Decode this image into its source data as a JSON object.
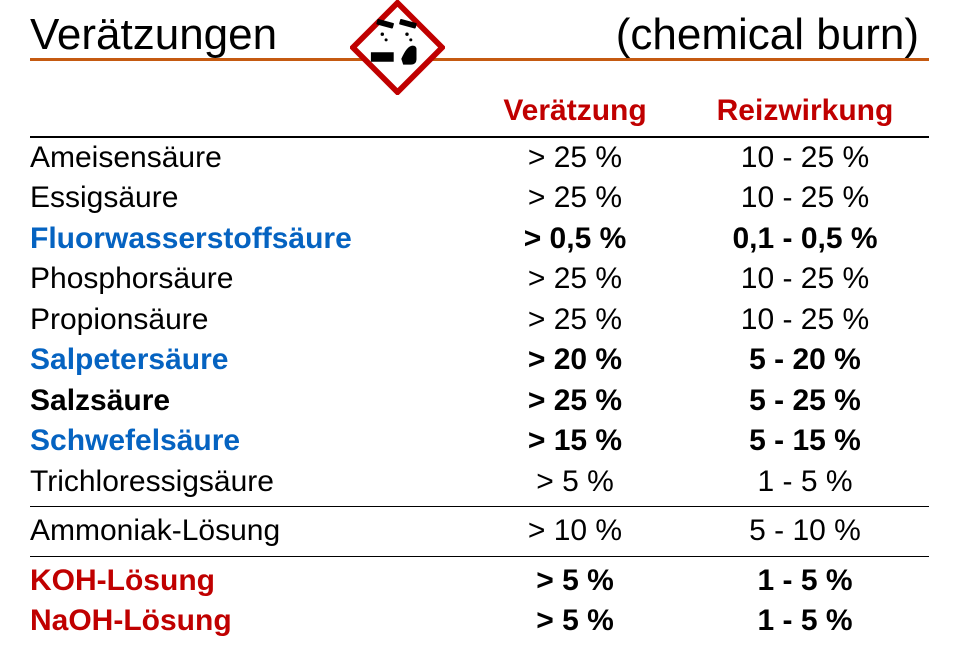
{
  "title_left": "Verätzungen",
  "title_right": "(chemical burn)",
  "header_col2": "Verätzung",
  "header_col3": "Reizwirkung",
  "colors": {
    "underline": "#c55a11",
    "blue": "#0563c1",
    "red": "#c00000",
    "black": "#000000"
  },
  "icon": {
    "border_color": "#c00000",
    "inner_bg": "#ffffff"
  },
  "rows": [
    {
      "name": "Ameisensäure",
      "v": "> 25 %",
      "r": "10 - 25 %",
      "name_color": "#000000"
    },
    {
      "name": "Essigsäure",
      "v": "> 25 %",
      "r": "10 - 25 %",
      "name_color": "#000000"
    },
    {
      "name": "Fluorwasserstoffsäure",
      "v": "> 0,5 %",
      "r": "0,1 - 0,5 %",
      "name_color": "#0563c1",
      "bold": true
    },
    {
      "name": "Phosphorsäure",
      "v": "> 25 %",
      "r": "10 - 25 %",
      "name_color": "#000000"
    },
    {
      "name": "Propionsäure",
      "v": "> 25 %",
      "r": "10 - 25 %",
      "name_color": "#000000"
    },
    {
      "name": "Salpetersäure",
      "v": "> 20 %",
      "r": "5 - 20 %",
      "name_color": "#0563c1",
      "bold": true
    },
    {
      "name": "Salzsäure",
      "v": "> 25 %",
      "r": "5 - 25 %",
      "name_color": "#000000",
      "bold": true
    },
    {
      "name": "Schwefelsäure",
      "v": "> 15 %",
      "r": "5 - 15 %",
      "name_color": "#0563c1",
      "bold": true
    },
    {
      "name": "Trichloressigsäure",
      "v": "> 5 %",
      "r": "1 - 5 %",
      "name_color": "#000000"
    }
  ],
  "rows2": [
    {
      "name": "Ammoniak-Lösung",
      "v": "> 10 %",
      "r": "5 - 10 %",
      "name_color": "#000000"
    }
  ],
  "rows3": [
    {
      "name": "KOH-Lösung",
      "v": "> 5 %",
      "r": "1 - 5 %",
      "name_color": "#c00000",
      "bold": true
    },
    {
      "name": "NaOH-Lösung",
      "v": "> 5 %",
      "r": "1 - 5 %",
      "name_color": "#c00000",
      "bold": true
    }
  ]
}
